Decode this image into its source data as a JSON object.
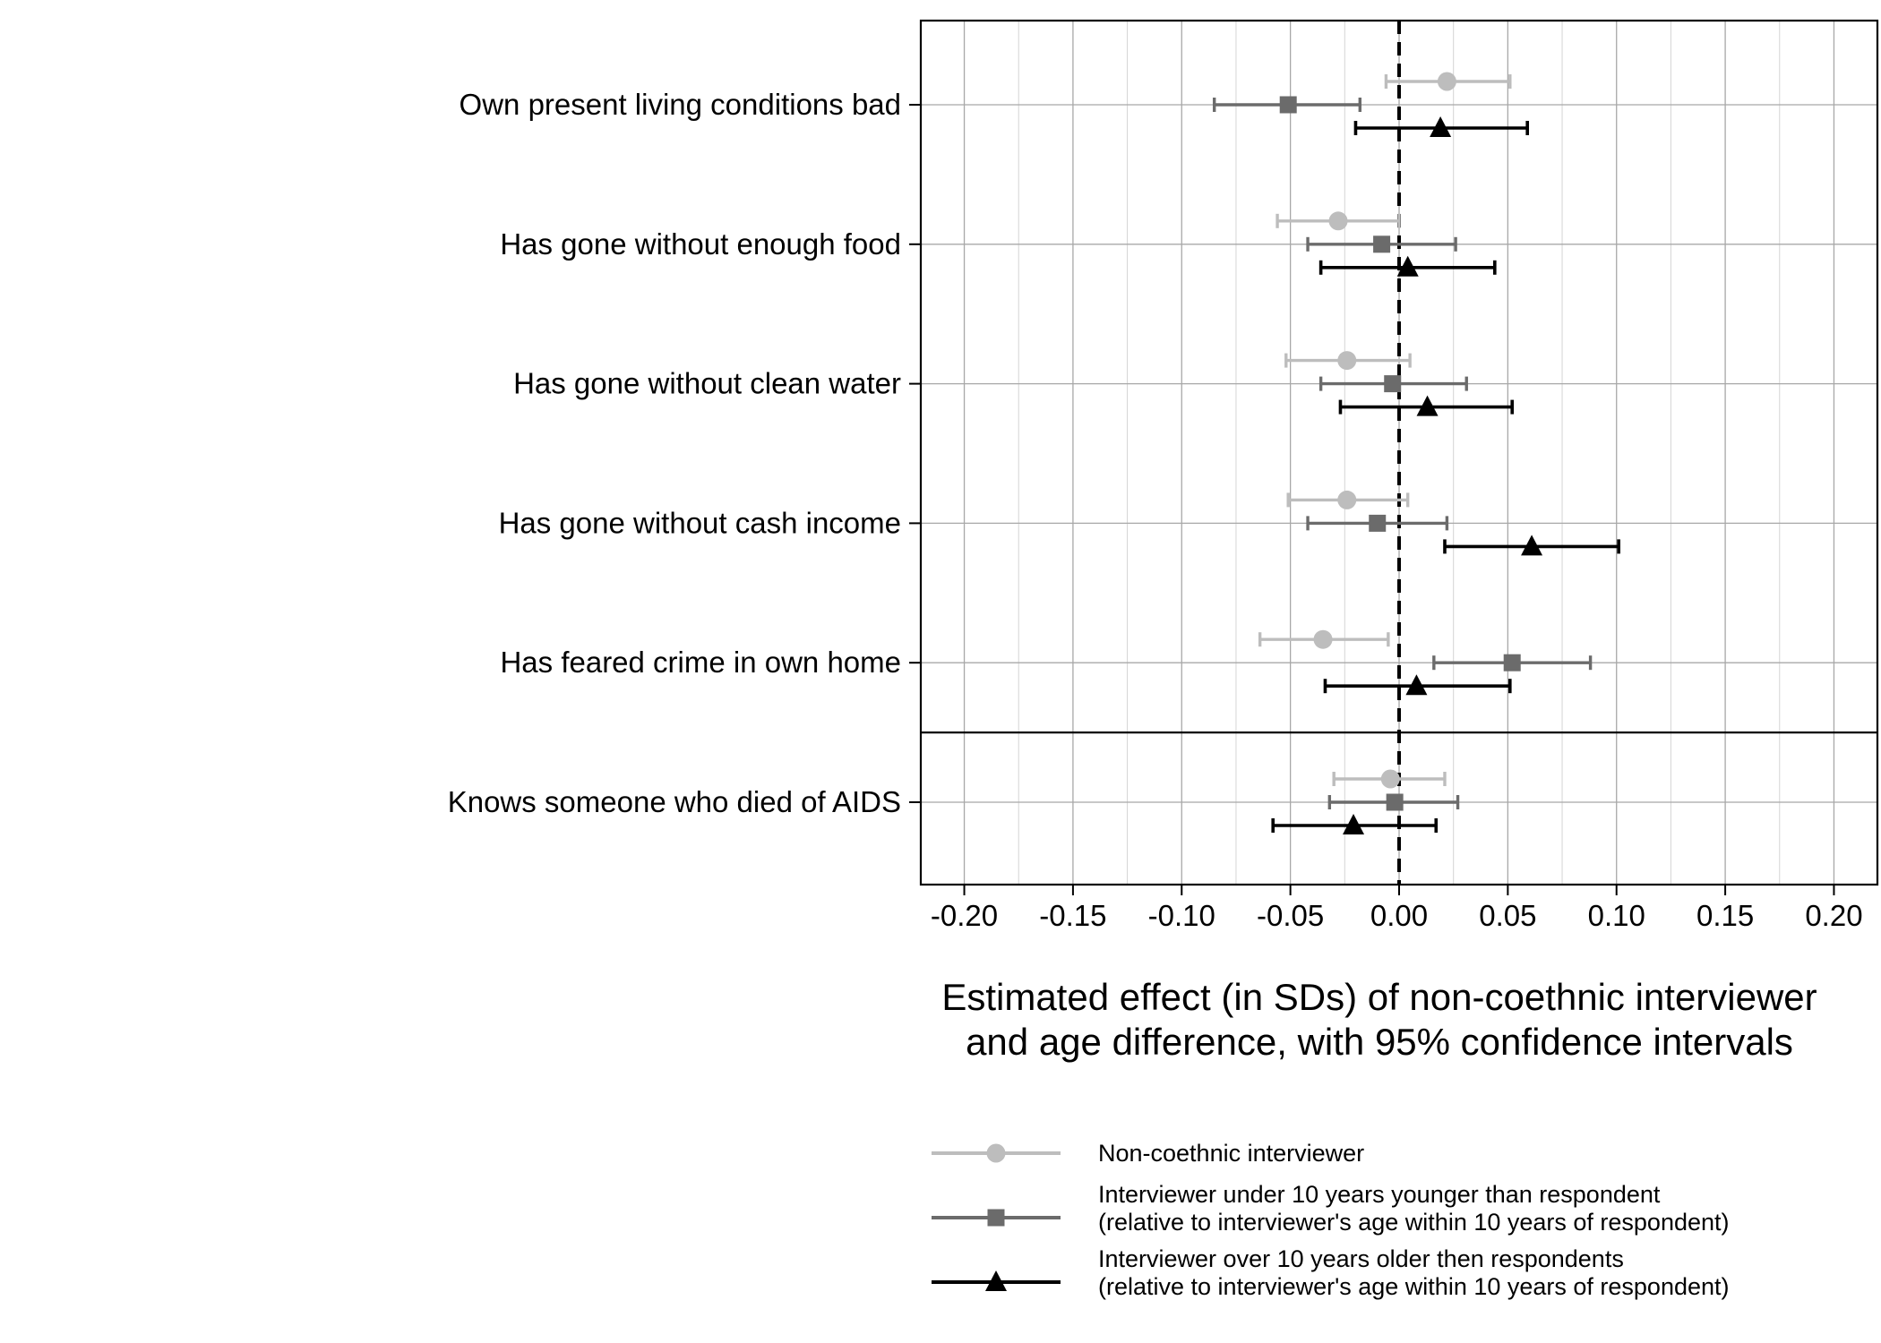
{
  "chart_data": {
    "type": "forest",
    "categories": [
      "Own present living conditions bad",
      "Has gone without enough food",
      "Has gone without clean water",
      "Has gone without cash income",
      "Has feared crime in own home",
      "Knows someone who died of AIDS"
    ],
    "separator_after_index": 4,
    "xlim": [
      -0.22,
      0.22
    ],
    "xticks": [
      -0.2,
      -0.15,
      -0.1,
      -0.05,
      0.0,
      0.05,
      0.1,
      0.15,
      0.2
    ],
    "xtick_labels": [
      "-0.20",
      "-0.15",
      "-0.10",
      "-0.05",
      "0.00",
      "0.05",
      "0.10",
      "0.15",
      "0.20"
    ],
    "reference_line": 0,
    "grid": true,
    "xlabel": [
      "Estimated effect (in SDs) of non-coethnic interviewer",
      "and age difference, with 95% confidence intervals"
    ],
    "legend_position": "bottom",
    "series": [
      {
        "name_lines": [
          "Non-coethnic interviewer"
        ],
        "color": "#bdbdbd",
        "marker": "circle",
        "estimates": [
          0.022,
          -0.028,
          -0.024,
          -0.024,
          -0.035,
          -0.004
        ],
        "ci_low": [
          -0.006,
          -0.056,
          -0.052,
          -0.051,
          -0.064,
          -0.03
        ],
        "ci_high": [
          0.051,
          0.0,
          0.005,
          0.004,
          -0.005,
          0.021
        ]
      },
      {
        "name_lines": [
          "Interviewer under 10 years younger than respondent",
          "(relative to interviewer's age within 10 years of respondent)"
        ],
        "color": "#6b6b6b",
        "marker": "square",
        "estimates": [
          -0.051,
          -0.008,
          -0.003,
          -0.01,
          0.052,
          -0.002
        ],
        "ci_low": [
          -0.085,
          -0.042,
          -0.036,
          -0.042,
          0.016,
          -0.032
        ],
        "ci_high": [
          -0.018,
          0.026,
          0.031,
          0.022,
          0.088,
          0.027
        ]
      },
      {
        "name_lines": [
          "Interviewer over 10 years older then respondents",
          "(relative to interviewer's age within 10 years of respondent)"
        ],
        "color": "#000000",
        "marker": "triangle",
        "estimates": [
          0.019,
          0.004,
          0.013,
          0.061,
          0.008,
          -0.021
        ],
        "ci_low": [
          -0.02,
          -0.036,
          -0.027,
          0.021,
          -0.034,
          -0.058
        ],
        "ci_high": [
          0.059,
          0.044,
          0.052,
          0.101,
          0.051,
          0.017
        ]
      }
    ]
  }
}
